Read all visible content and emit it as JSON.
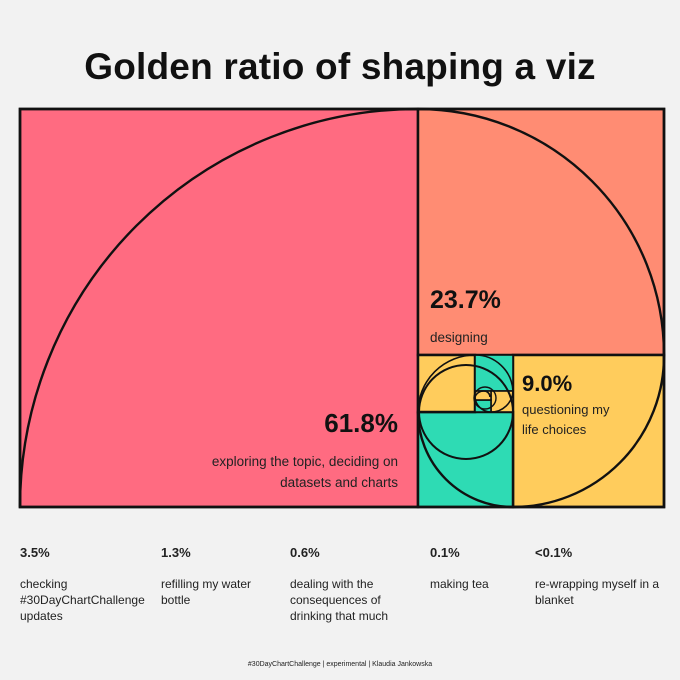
{
  "title": "Golden ratio of shaping a viz",
  "colors": {
    "largest": "#ff6b81",
    "second": "#ff8c73",
    "third": "#ffcc5c",
    "fourth": "#2edbb4",
    "outline": "#111111"
  },
  "chart_data": {
    "type": "golden-ratio-rectangle",
    "title": "Golden ratio of shaping a viz",
    "segments": [
      {
        "value": "61.8%",
        "label": "exploring the topic, deciding on datasets and charts",
        "lines": [
          "exploring the topic, deciding on",
          "datasets and charts"
        ]
      },
      {
        "value": "23.7%",
        "label": "designing",
        "lines": [
          "designing"
        ]
      },
      {
        "value": "9.0%",
        "label": "questioning my life choices",
        "lines": [
          "questioning my",
          "life choices"
        ]
      }
    ],
    "minor_segments": [
      {
        "value": "3.5%",
        "label": "checking #30DayChartChallenge updates",
        "lines": [
          "checking",
          "#30DayChartChallenge",
          "updates"
        ]
      },
      {
        "value": "1.3%",
        "label": "refilling my water bottle",
        "lines": [
          "refilling my water",
          "bottle"
        ]
      },
      {
        "value": "0.6%",
        "label": "dealing with the consequences of drinking that much",
        "lines": [
          "dealing with the",
          "consequences of",
          "drinking that much"
        ]
      },
      {
        "value": "0.1%",
        "label": "making tea",
        "lines": [
          "making tea"
        ]
      },
      {
        "value": "<0.1%",
        "label": "re-wrapping myself in a blanket",
        "lines": [
          "re-wrapping myself in a",
          "blanket"
        ]
      }
    ]
  },
  "footer": "#30DayChartChallenge  |  experimental  |  Klaudia Jankowska"
}
